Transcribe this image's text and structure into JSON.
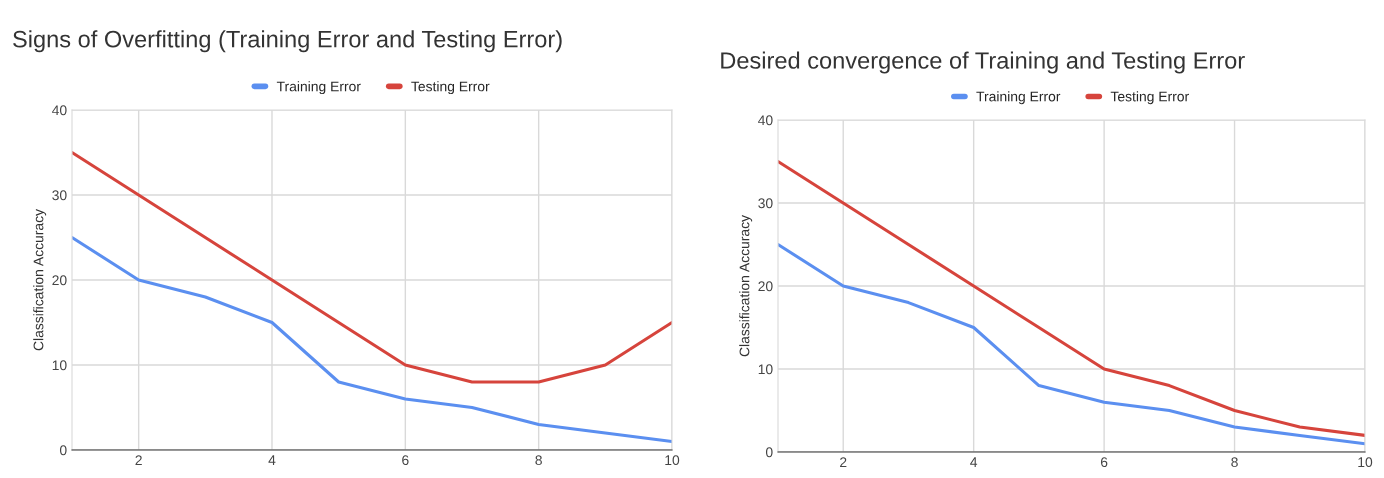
{
  "chart_data": [
    {
      "type": "line",
      "title": "Signs of Overfitting (Training Error and Testing Error)",
      "ylabel": "Classification Accuracy",
      "x": [
        1,
        2,
        3,
        4,
        5,
        6,
        7,
        8,
        9,
        10
      ],
      "xlim": [
        1,
        10
      ],
      "xticks": [
        2,
        4,
        6,
        8,
        10
      ],
      "ylim": [
        0,
        40
      ],
      "yticks": [
        0,
        10,
        20,
        30,
        40
      ],
      "grid": true,
      "legend": "top",
      "marker": "none",
      "line_style": "solid",
      "series": [
        {
          "name": "Training Error",
          "color": "#5b8ff0",
          "values": [
            25,
            20,
            18,
            15,
            8,
            6,
            5,
            3,
            2,
            1
          ]
        },
        {
          "name": "Testing Error",
          "color": "#d6443c",
          "values": [
            35,
            30,
            25,
            20,
            15,
            10,
            8,
            8,
            10,
            15
          ]
        }
      ]
    },
    {
      "type": "line",
      "title": "Desired convergence of Training and Testing Error",
      "ylabel": "Classification Accuracy",
      "x": [
        1,
        2,
        3,
        4,
        5,
        6,
        7,
        8,
        9,
        10
      ],
      "xlim": [
        1,
        10
      ],
      "xticks": [
        2,
        4,
        6,
        8,
        10
      ],
      "ylim": [
        0,
        40
      ],
      "yticks": [
        0,
        10,
        20,
        30,
        40
      ],
      "grid": true,
      "legend": "top",
      "marker": "none",
      "line_style": "solid",
      "series": [
        {
          "name": "Training Error",
          "color": "#5b8ff0",
          "values": [
            25,
            20,
            18,
            15,
            8,
            6,
            5,
            3,
            2,
            1
          ]
        },
        {
          "name": "Testing Error",
          "color": "#d6443c",
          "values": [
            35,
            30,
            25,
            20,
            15,
            10,
            8,
            5,
            3,
            2
          ]
        }
      ]
    }
  ]
}
